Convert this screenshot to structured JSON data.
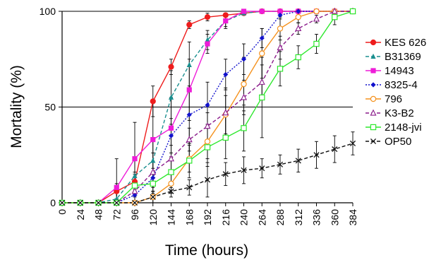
{
  "chart_data": {
    "type": "line",
    "title": "",
    "xlabel": "Time (hours)",
    "ylabel": "Mortality (%)",
    "xlim": [
      0,
      384
    ],
    "ylim": [
      0,
      100
    ],
    "x_ticks": [
      "0",
      "24",
      "48",
      "72",
      "96",
      "120",
      "144",
      "168",
      "192",
      "216",
      "240",
      "264",
      "288",
      "312",
      "336",
      "360",
      "384"
    ],
    "y_ticks": [
      "0",
      "50",
      "100"
    ],
    "gridlines_y": [
      50,
      100
    ],
    "legend_position": "right",
    "series": [
      {
        "name": "KES 626",
        "color": "#ee1c1c",
        "marker": "filled-circle",
        "dash": "solid",
        "x": [
          0,
          24,
          48,
          72,
          96,
          120,
          144,
          168,
          192,
          216,
          240,
          264,
          288,
          312,
          336,
          360,
          384
        ],
        "y": [
          0,
          0,
          0,
          6,
          11,
          53,
          71,
          93,
          97,
          98,
          99,
          100,
          100,
          100,
          100,
          100,
          100
        ],
        "err": [
          0,
          0,
          0,
          4,
          5,
          8,
          4,
          2,
          2,
          1,
          1,
          0,
          0,
          0,
          0,
          0,
          0
        ]
      },
      {
        "name": "B31369",
        "color": "#1a8f8f",
        "marker": "filled-triangle",
        "dash": "dashed",
        "x": [
          0,
          24,
          48,
          72,
          96,
          120,
          144,
          168,
          192,
          216,
          240,
          264,
          288,
          312,
          336,
          360,
          384
        ],
        "y": [
          0,
          0,
          0,
          2,
          14,
          22,
          55,
          72,
          85,
          95,
          99,
          100,
          100,
          100,
          100,
          100,
          100
        ],
        "err": [
          0,
          0,
          0,
          3,
          8,
          12,
          14,
          12,
          5,
          3,
          1,
          0,
          0,
          0,
          0,
          0,
          0
        ]
      },
      {
        "name": "14943",
        "color": "#ee1cd8",
        "marker": "filled-square",
        "dash": "solid",
        "x": [
          0,
          24,
          48,
          72,
          96,
          120,
          144,
          168,
          192,
          216,
          240,
          264,
          288,
          312,
          336,
          360,
          384
        ],
        "y": [
          0,
          0,
          0,
          8,
          23,
          33,
          39,
          59,
          83,
          95,
          100,
          100,
          100,
          100,
          100,
          100,
          100
        ],
        "err": [
          0,
          0,
          0,
          15,
          19,
          20,
          16,
          16,
          5,
          4,
          0,
          0,
          0,
          0,
          0,
          0,
          0
        ]
      },
      {
        "name": "8325-4",
        "color": "#1111cc",
        "marker": "filled-diamond",
        "dash": "dotted",
        "x": [
          0,
          24,
          48,
          72,
          96,
          120,
          144,
          168,
          192,
          216,
          240,
          264,
          288,
          312,
          336,
          360,
          384
        ],
        "y": [
          0,
          0,
          0,
          0,
          4,
          13,
          35,
          46,
          51,
          67,
          75,
          86,
          98,
          100,
          100,
          100,
          100
        ],
        "err": [
          0,
          0,
          0,
          2,
          3,
          5,
          9,
          15,
          12,
          8,
          8,
          5,
          2,
          0,
          0,
          0,
          0
        ]
      },
      {
        "name": "796",
        "color": "#f5921e",
        "marker": "open-circle",
        "dash": "solid",
        "x": [
          0,
          24,
          48,
          72,
          96,
          120,
          144,
          168,
          192,
          216,
          240,
          264,
          288,
          312,
          336,
          360,
          384
        ],
        "y": [
          0,
          0,
          0,
          0,
          0,
          3,
          10,
          23,
          32,
          46,
          62,
          78,
          91,
          97,
          100,
          100,
          100
        ],
        "err": [
          0,
          0,
          0,
          0,
          0,
          3,
          5,
          7,
          9,
          10,
          14,
          13,
          6,
          3,
          1,
          0,
          0
        ]
      },
      {
        "name": "K3-B2",
        "color": "#8a1a8a",
        "marker": "open-triangle",
        "dash": "dashed",
        "x": [
          0,
          24,
          48,
          72,
          96,
          120,
          144,
          168,
          192,
          216,
          240,
          264,
          288,
          312,
          336,
          360,
          384
        ],
        "y": [
          0,
          0,
          0,
          0,
          6,
          16,
          23,
          33,
          40,
          47,
          55,
          63,
          81,
          91,
          96,
          100,
          100
        ],
        "err": [
          0,
          0,
          0,
          2,
          5,
          10,
          7,
          6,
          7,
          13,
          9,
          9,
          6,
          3,
          2,
          1,
          0
        ]
      },
      {
        "name": "2148-jvi",
        "color": "#2ee82e",
        "marker": "open-square",
        "dash": "solid",
        "x": [
          0,
          24,
          48,
          72,
          96,
          120,
          144,
          168,
          192,
          216,
          240,
          264,
          288,
          312,
          336,
          360,
          384
        ],
        "y": [
          0,
          0,
          0,
          0,
          9,
          10,
          16,
          22,
          29,
          34,
          39,
          55,
          70,
          76,
          83,
          97,
          100
        ],
        "err": [
          0,
          0,
          0,
          2,
          6,
          5,
          8,
          9,
          10,
          11,
          12,
          21,
          9,
          6,
          5,
          4,
          0
        ]
      },
      {
        "name": "OP50",
        "color": "#111111",
        "marker": "cross",
        "dash": "dashed",
        "x": [
          0,
          24,
          48,
          72,
          96,
          120,
          144,
          168,
          192,
          216,
          240,
          264,
          288,
          312,
          336,
          360,
          384
        ],
        "y": [
          0,
          0,
          0,
          0,
          0,
          3,
          6,
          8,
          12,
          15,
          17,
          18,
          20,
          22,
          25,
          28,
          31
        ],
        "err": [
          0,
          0,
          0,
          0,
          0,
          3,
          3,
          4,
          9,
          6,
          7,
          5,
          5,
          6,
          7,
          7,
          6
        ]
      }
    ]
  }
}
